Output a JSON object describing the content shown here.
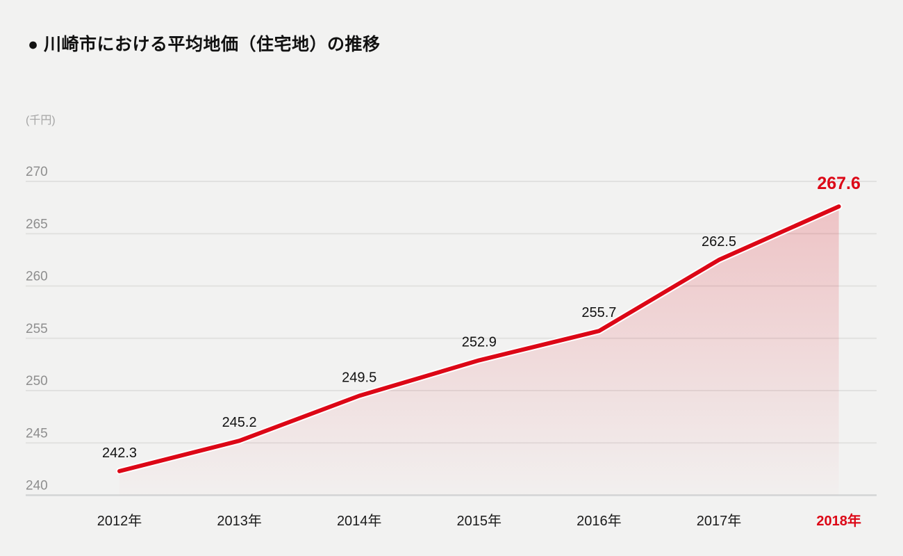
{
  "title": "● 川崎市における平均地価（住宅地）の推移",
  "unit_label": "(千円)",
  "colors": {
    "background": "#f2f2f1",
    "accent_red": "#dc0716",
    "line_halo": "#ffffff",
    "label_black": "#111111",
    "tick_gray": "#8e8e8e",
    "unit_gray": "#a5a5a5",
    "grid_line": "#e1e1e0",
    "axis_line": "#d3d5d6",
    "fill_top_opacity": 0.2,
    "fill_bottom_opacity": 0.01
  },
  "chart_data": {
    "type": "line",
    "title": "川崎市における平均地価（住宅地）の推移",
    "categories": [
      "2012年",
      "2013年",
      "2014年",
      "2015年",
      "2016年",
      "2017年",
      "2018年"
    ],
    "values": [
      242.3,
      245.2,
      249.5,
      252.9,
      255.7,
      262.5,
      267.6
    ],
    "value_labels": [
      "242.3",
      "245.2",
      "249.5",
      "252.9",
      "255.7",
      "262.5",
      "267.6"
    ],
    "highlight_index": 6,
    "ylabel": "(千円)",
    "ylim": [
      240,
      270
    ],
    "yticks": [
      240,
      245,
      250,
      255,
      260,
      265,
      270
    ],
    "grid": true,
    "legend": false,
    "area_fill": true
  }
}
